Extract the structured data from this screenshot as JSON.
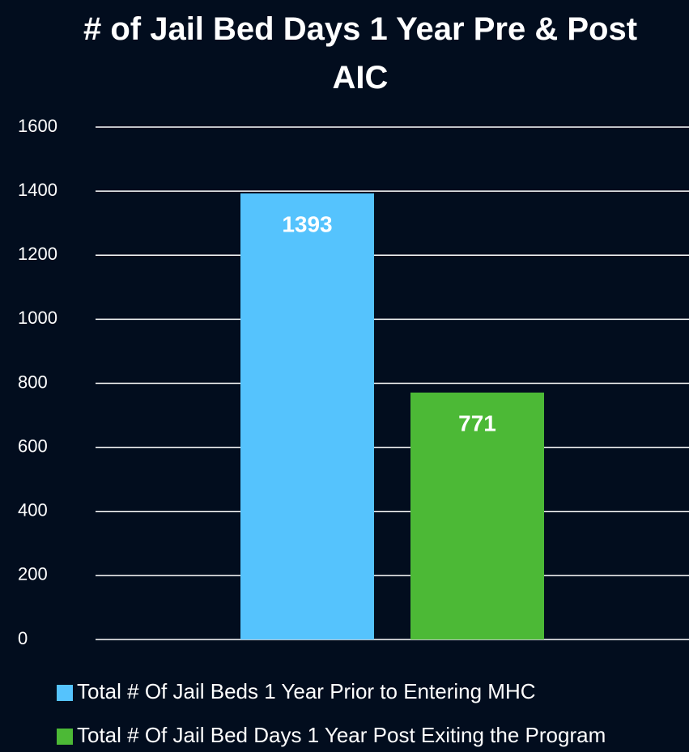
{
  "chart_data": {
    "type": "bar",
    "title": "# of Jail Bed Days 1 Year Pre & Post AIC",
    "categories": [
      null
    ],
    "series": [
      {
        "name": "Total # Of Jail Beds 1 Year Prior to Entering MHC",
        "color": "#55c3fd",
        "values": [
          1393
        ]
      },
      {
        "name": "Total # Of Jail Bed Days 1 Year Post Exiting the Program",
        "color": "#4cb936",
        "values": [
          771
        ]
      }
    ],
    "ylim": [
      0,
      1600
    ],
    "yticks": [
      0,
      200,
      400,
      600,
      800,
      1000,
      1200,
      1400,
      1600
    ],
    "grid": true,
    "legend": "bottom"
  }
}
